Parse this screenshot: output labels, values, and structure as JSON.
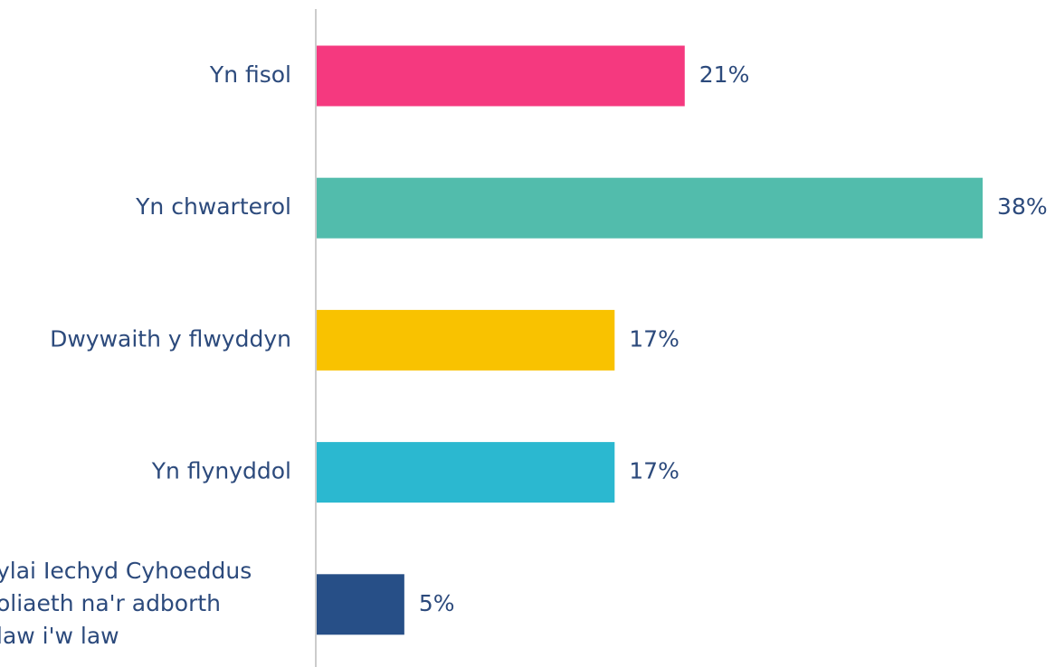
{
  "chart_data": {
    "type": "bar",
    "orientation": "horizontal",
    "categories": [
      "Yn fisol",
      "Yn chwarterol",
      "Dwywaith y flwyddyn",
      "Yn flynyddol",
      "ylai Iechyd Cyhoeddus\noliaeth na'r adborth\nlaw i'w law"
    ],
    "values": [
      21,
      38,
      17,
      17,
      5
    ],
    "value_labels": [
      "21%",
      "38%",
      "17%",
      "17%",
      "5%"
    ],
    "colors": [
      "#f5397f",
      "#52bcac",
      "#f9c200",
      "#2bb8d0",
      "#274f87"
    ]
  }
}
